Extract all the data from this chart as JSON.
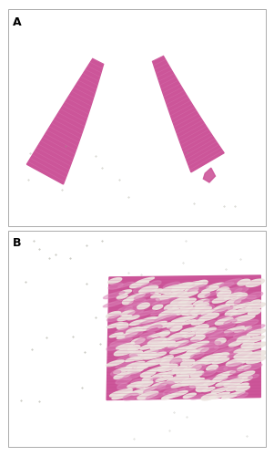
{
  "fig_width": 3.01,
  "fig_height": 5.0,
  "dpi": 100,
  "panel_A_bg": "#d6d2ca",
  "panel_B_bg": "#cbc7be",
  "label_A": "A",
  "label_B": "B",
  "label_fontsize": 9,
  "label_fontweight": "bold",
  "tissue_pink": "#cc5599",
  "tissue_pink_light": "#dd88bb",
  "tissue_pink_mid": "#c04488",
  "gap_color": "#e8ddd8",
  "border_color": "#888888",
  "border_linewidth": 0.5
}
